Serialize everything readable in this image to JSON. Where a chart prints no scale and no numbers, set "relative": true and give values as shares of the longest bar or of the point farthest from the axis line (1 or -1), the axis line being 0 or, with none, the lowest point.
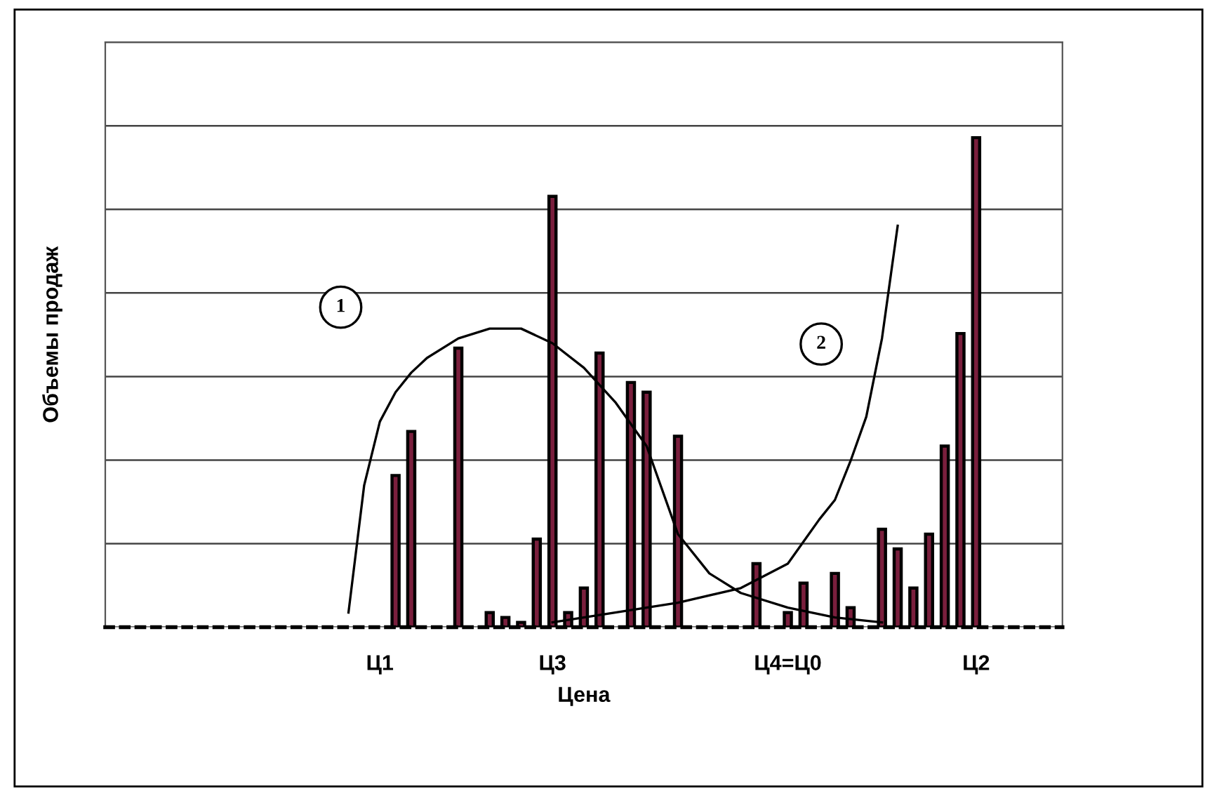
{
  "chart_data": {
    "type": "bar",
    "relative": true,
    "xlabel": "Цена",
    "ylabel": "Объемы продаж",
    "categories": [
      null,
      null,
      null,
      null,
      null,
      null,
      null,
      null,
      null,
      null,
      null,
      null,
      null,
      null,
      null,
      null,
      null,
      "Ц1",
      null,
      null,
      null,
      null,
      null,
      null,
      null,
      null,
      null,
      null,
      "Ц3",
      null,
      null,
      null,
      null,
      null,
      null,
      null,
      null,
      null,
      null,
      null,
      null,
      null,
      null,
      "Ц4=Ц0",
      null,
      null,
      null,
      null,
      null,
      null,
      null,
      null,
      null,
      null,
      null,
      "Ц2",
      null,
      null,
      null,
      null,
      null
    ],
    "series": [
      {
        "color": "#7a1f3d",
        "values": [
          null,
          null,
          null,
          null,
          null,
          null,
          null,
          null,
          null,
          null,
          null,
          null,
          null,
          null,
          null,
          null,
          null,
          null,
          0.31,
          0.4,
          null,
          null,
          0.57,
          null,
          0.03,
          0.02,
          0.01,
          0.18,
          0.88,
          0.03,
          0.08,
          0.56,
          null,
          0.5,
          0.48,
          null,
          0.39,
          null,
          null,
          null,
          null,
          0.13,
          null,
          0.03,
          0.09,
          null,
          0.11,
          0.04,
          null,
          0.2,
          0.16,
          0.08,
          0.19,
          0.37,
          0.6,
          1.0,
          null,
          null,
          null,
          null,
          null
        ]
      },
      {
        "type": "line",
        "color": "#000000",
        "values": [
          null,
          null,
          null,
          null,
          null,
          null,
          null,
          null,
          null,
          null,
          null,
          null,
          null,
          null,
          null,
          0.03,
          0.29,
          0.42,
          0.48,
          0.52,
          0.55,
          null,
          0.59,
          null,
          0.61,
          null,
          0.61,
          null,
          0.58,
          null,
          0.53,
          null,
          0.46,
          null,
          0.37,
          null,
          0.19,
          null,
          0.11,
          null,
          0.07,
          null,
          null,
          0.04,
          null,
          null,
          0.02,
          null,
          null,
          0.01,
          null,
          null,
          null,
          null,
          null,
          null,
          null,
          null,
          null,
          null,
          null
        ]
      },
      {
        "type": "line",
        "color": "#000000",
        "values": [
          null,
          null,
          null,
          null,
          null,
          null,
          null,
          null,
          null,
          null,
          null,
          null,
          null,
          null,
          null,
          null,
          null,
          null,
          null,
          null,
          null,
          null,
          null,
          null,
          null,
          null,
          null,
          null,
          0.01,
          null,
          null,
          null,
          0.03,
          null,
          null,
          null,
          0.05,
          null,
          null,
          null,
          0.08,
          null,
          null,
          0.13,
          null,
          0.22,
          0.26,
          0.34,
          0.43,
          0.59,
          0.82,
          null,
          null,
          null,
          null,
          null,
          null,
          null,
          null,
          null,
          null
        ]
      }
    ],
    "annotations": [
      "1",
      "2"
    ],
    "grid": "y",
    "legend": false,
    "marker": "none",
    "line_style": "solid"
  }
}
